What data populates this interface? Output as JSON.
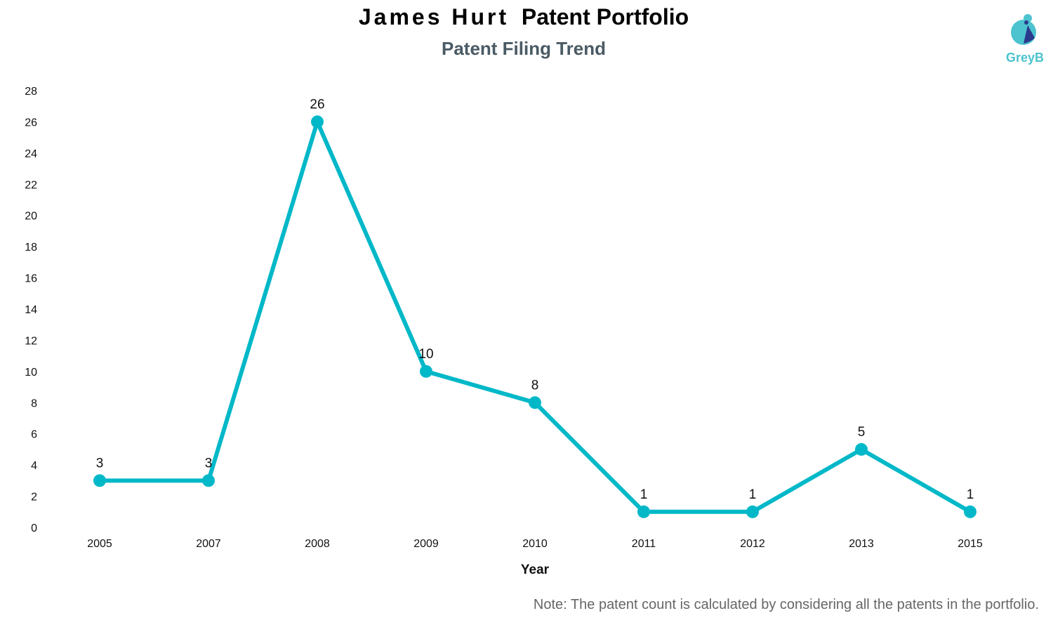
{
  "header": {
    "title_name": "James Hurt",
    "title_rest": "Patent Portfolio",
    "subtitle": "Patent Filing Trend"
  },
  "logo": {
    "text": "GreyB"
  },
  "note": "Note: The patent count is calculated by considering all the patents in the portfolio.",
  "colors": {
    "line": "#00b8c8",
    "logo_light": "#4cc3cf",
    "logo_dark": "#2a3a8c"
  },
  "chart_data": {
    "type": "line",
    "title": "Patent Filing Trend",
    "xlabel": "Year",
    "ylabel": "",
    "categories": [
      "2005",
      "2007",
      "2008",
      "2009",
      "2010",
      "2011",
      "2012",
      "2013",
      "2015"
    ],
    "values": [
      3,
      3,
      26,
      10,
      8,
      1,
      1,
      5,
      1
    ],
    "ylim": [
      0,
      28
    ],
    "yticks": [
      0,
      2,
      4,
      6,
      8,
      10,
      12,
      14,
      16,
      18,
      20,
      22,
      24,
      26,
      28
    ],
    "grid": false,
    "data_labels": true
  }
}
